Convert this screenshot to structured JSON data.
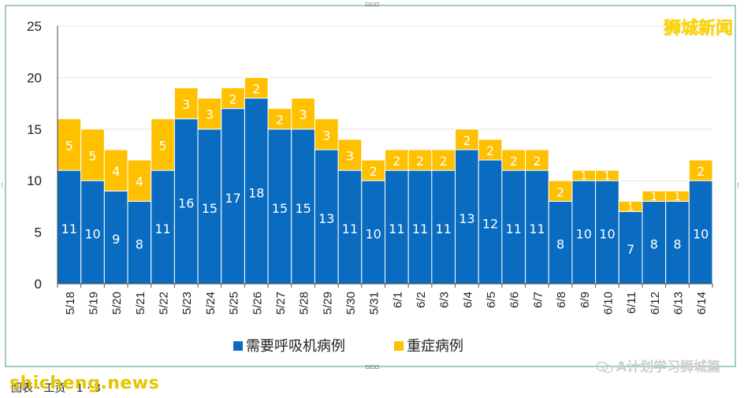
{
  "brand": "狮城新闻",
  "watermark_left": "shicheng.news",
  "watermark_right": "A计划学习狮城篇",
  "bottom_text": "图表 · 工资 · 1 · 3",
  "colors": {
    "respiratory": "#0a6cc0",
    "severe": "#ffc000",
    "frame": "#9fcfc4",
    "grid": "#e6e6e6"
  },
  "chart_data": {
    "type": "bar",
    "stacked": true,
    "categories": [
      "5/18",
      "5/19",
      "5/20",
      "5/21",
      "5/22",
      "5/23",
      "5/24",
      "5/25",
      "5/26",
      "5/27",
      "5/28",
      "5/29",
      "5/30",
      "5/31",
      "6/1",
      "6/2",
      "6/3",
      "6/4",
      "6/5",
      "6/6",
      "6/7",
      "6/8",
      "6/9",
      "6/10",
      "6/11",
      "6/12",
      "6/13",
      "6/14"
    ],
    "series": [
      {
        "name": "需要呼吸机病例",
        "values": [
          11,
          10,
          9,
          8,
          11,
          16,
          15,
          17,
          18,
          15,
          15,
          13,
          11,
          10,
          11,
          11,
          11,
          13,
          12,
          11,
          11,
          8,
          10,
          10,
          7,
          8,
          8,
          10
        ]
      },
      {
        "name": "重症病例",
        "values": [
          5,
          5,
          4,
          4,
          5,
          3,
          3,
          2,
          2,
          2,
          3,
          3,
          3,
          2,
          2,
          2,
          2,
          2,
          2,
          2,
          2,
          2,
          1,
          1,
          1,
          1,
          1,
          2
        ]
      }
    ],
    "ylim": [
      0,
      25
    ],
    "yticks": [
      0,
      5,
      10,
      15,
      20,
      25
    ],
    "grid": true,
    "legend": "bottom"
  }
}
